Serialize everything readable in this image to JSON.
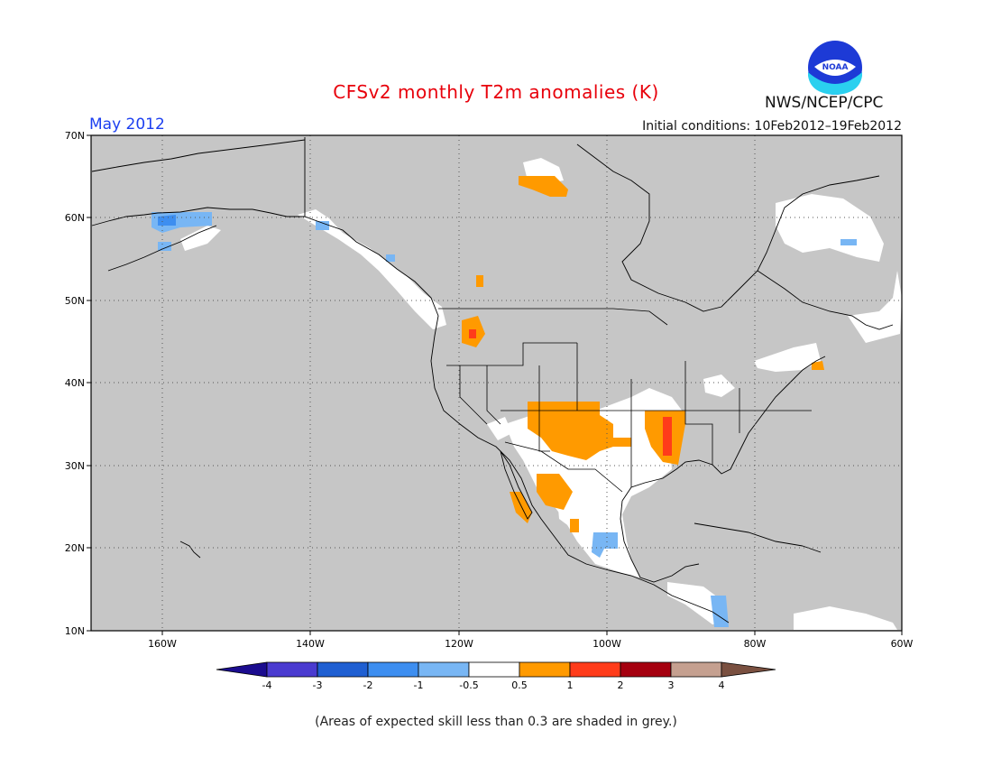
{
  "header": {
    "title": "CFSv2 monthly T2m anomalies (K)",
    "month": "May 2012",
    "initial_conditions": "Initial conditions: 10Feb2012–19Feb2012",
    "agency": "NWS/NCEP/CPC",
    "logo_text": "NOAA"
  },
  "map": {
    "lat_labels": [
      "70N",
      "60N",
      "50N",
      "40N",
      "30N",
      "20N",
      "10N"
    ],
    "lon_labels": [
      "160W",
      "140W",
      "120W",
      "100W",
      "80W",
      "60W"
    ],
    "colors": {
      "ocean_land_low_skill": "#c6c6c6",
      "coast": "#000000",
      "grid": "#555555"
    }
  },
  "legend": {
    "tick_labels": [
      "-4",
      "-3",
      "-2",
      "-1",
      "-0.5",
      "0.5",
      "1",
      "2",
      "3",
      "4"
    ],
    "colors": [
      "#1b0c8f",
      "#4a3bd0",
      "#1f5fd2",
      "#3d8ef0",
      "#78b6f4",
      "#ffffff",
      "#ff9a00",
      "#ff3c1a",
      "#a5000f",
      "#c5a090",
      "#7a5040"
    ]
  },
  "note": "(Areas of expected skill less than 0.3 are shaded in grey.)"
}
